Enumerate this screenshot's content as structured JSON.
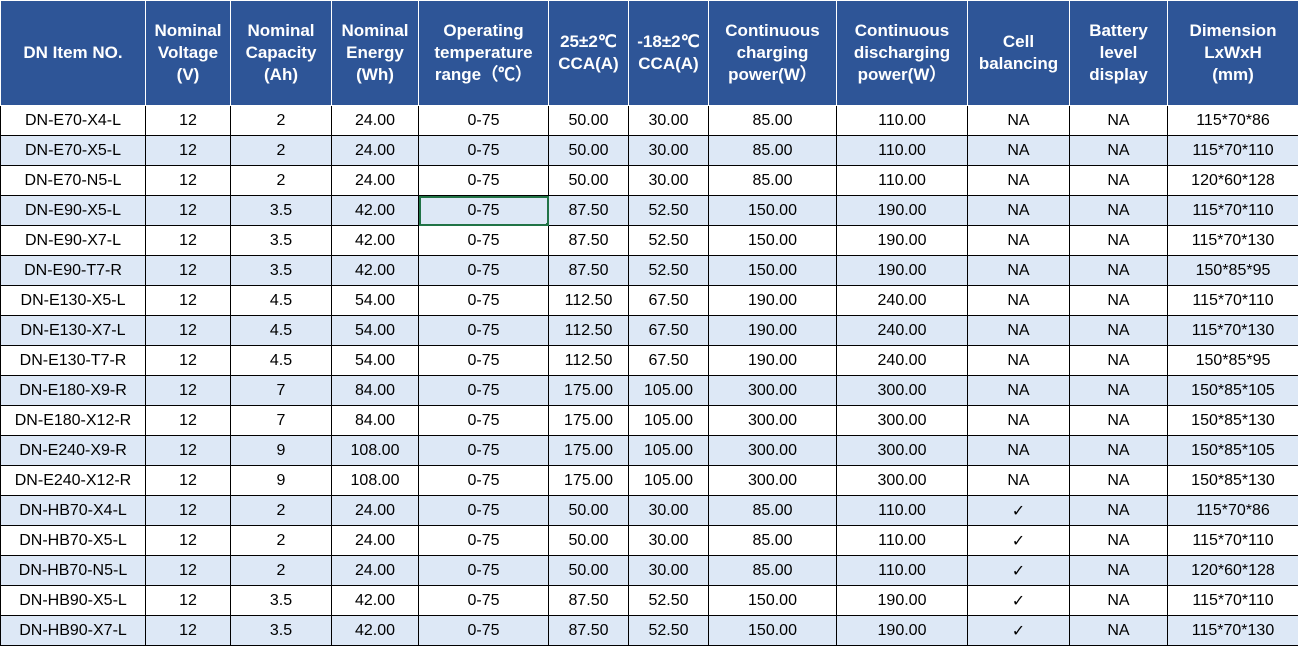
{
  "table": {
    "headers": [
      "DN Item NO.",
      "Nominal\nVoltage\n(V)",
      "Nominal\nCapacity\n(Ah)",
      "Nominal\nEnergy\n(Wh)",
      "Operating\ntemperature\nrange（℃）",
      "25±2℃\nCCA(A)",
      "-18±2℃\nCCA(A)",
      "Continuous\ncharging\npower(W）",
      "Continuous\ndischarging\npower(W）",
      "Cell\nbalancing",
      "Battery\nlevel\ndisplay",
      "Dimension\nLxWxH\n(mm)"
    ],
    "rows": [
      [
        "DN-E70-X4-L",
        "12",
        "2",
        "24.00",
        "0-75",
        "50.00",
        "30.00",
        "85.00",
        "110.00",
        "NA",
        "NA",
        "115*70*86"
      ],
      [
        "DN-E70-X5-L",
        "12",
        "2",
        "24.00",
        "0-75",
        "50.00",
        "30.00",
        "85.00",
        "110.00",
        "NA",
        "NA",
        "115*70*110"
      ],
      [
        "DN-E70-N5-L",
        "12",
        "2",
        "24.00",
        "0-75",
        "50.00",
        "30.00",
        "85.00",
        "110.00",
        "NA",
        "NA",
        "120*60*128"
      ],
      [
        "DN-E90-X5-L",
        "12",
        "3.5",
        "42.00",
        "0-75",
        "87.50",
        "52.50",
        "150.00",
        "190.00",
        "NA",
        "NA",
        "115*70*110"
      ],
      [
        "DN-E90-X7-L",
        "12",
        "3.5",
        "42.00",
        "0-75",
        "87.50",
        "52.50",
        "150.00",
        "190.00",
        "NA",
        "NA",
        "115*70*130"
      ],
      [
        "DN-E90-T7-R",
        "12",
        "3.5",
        "42.00",
        "0-75",
        "87.50",
        "52.50",
        "150.00",
        "190.00",
        "NA",
        "NA",
        "150*85*95"
      ],
      [
        "DN-E130-X5-L",
        "12",
        "4.5",
        "54.00",
        "0-75",
        "112.50",
        "67.50",
        "190.00",
        "240.00",
        "NA",
        "NA",
        "115*70*110"
      ],
      [
        "DN-E130-X7-L",
        "12",
        "4.5",
        "54.00",
        "0-75",
        "112.50",
        "67.50",
        "190.00",
        "240.00",
        "NA",
        "NA",
        "115*70*130"
      ],
      [
        "DN-E130-T7-R",
        "12",
        "4.5",
        "54.00",
        "0-75",
        "112.50",
        "67.50",
        "190.00",
        "240.00",
        "NA",
        "NA",
        "150*85*95"
      ],
      [
        "DN-E180-X9-R",
        "12",
        "7",
        "84.00",
        "0-75",
        "175.00",
        "105.00",
        "300.00",
        "300.00",
        "NA",
        "NA",
        "150*85*105"
      ],
      [
        "DN-E180-X12-R",
        "12",
        "7",
        "84.00",
        "0-75",
        "175.00",
        "105.00",
        "300.00",
        "300.00",
        "NA",
        "NA",
        "150*85*130"
      ],
      [
        "DN-E240-X9-R",
        "12",
        "9",
        "108.00",
        "0-75",
        "175.00",
        "105.00",
        "300.00",
        "300.00",
        "NA",
        "NA",
        "150*85*105"
      ],
      [
        "DN-E240-X12-R",
        "12",
        "9",
        "108.00",
        "0-75",
        "175.00",
        "105.00",
        "300.00",
        "300.00",
        "NA",
        "NA",
        "150*85*130"
      ],
      [
        "DN-HB70-X4-L",
        "12",
        "2",
        "24.00",
        "0-75",
        "50.00",
        "30.00",
        "85.00",
        "110.00",
        "✓",
        "NA",
        "115*70*86"
      ],
      [
        "DN-HB70-X5-L",
        "12",
        "2",
        "24.00",
        "0-75",
        "50.00",
        "30.00",
        "85.00",
        "110.00",
        "✓",
        "NA",
        "115*70*110"
      ],
      [
        "DN-HB70-N5-L",
        "12",
        "2",
        "24.00",
        "0-75",
        "50.00",
        "30.00",
        "85.00",
        "110.00",
        "✓",
        "NA",
        "120*60*128"
      ],
      [
        "DN-HB90-X5-L",
        "12",
        "3.5",
        "42.00",
        "0-75",
        "87.50",
        "52.50",
        "150.00",
        "190.00",
        "✓",
        "NA",
        "115*70*110"
      ],
      [
        "DN-HB90-X7-L",
        "12",
        "3.5",
        "42.00",
        "0-75",
        "87.50",
        "52.50",
        "150.00",
        "190.00",
        "✓",
        "NA",
        "115*70*130"
      ]
    ]
  }
}
